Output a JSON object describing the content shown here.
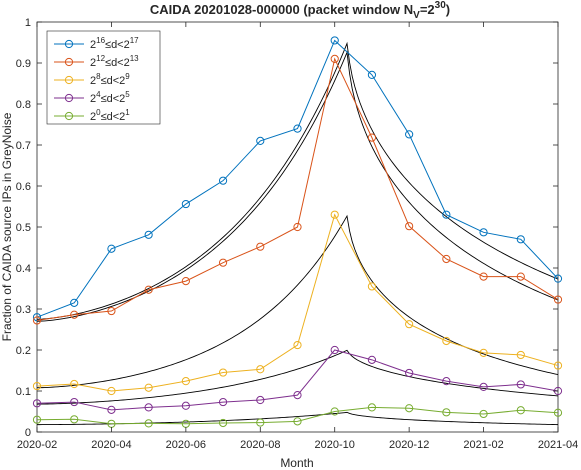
{
  "chart_data": {
    "type": "line",
    "title": "CAIDA 20201028-000000 (packet window N",
    "title_sub": "V",
    "title_eq": "=2",
    "title_sup": "30",
    "title_close": ")",
    "xlabel": "Month",
    "ylabel": "Fraction of CAIDA source IPs in GreyNoise",
    "x_range": [
      "2020-02",
      "2021-04"
    ],
    "ylim": [
      0,
      1
    ],
    "x_ticks": [
      "2020-02",
      "2020-04",
      "2020-06",
      "2020-08",
      "2020-10",
      "2020-12",
      "2021-02",
      "2021-04"
    ],
    "x_tick_labels": [
      "2020-02",
      "2020-04",
      "2020-06",
      "2020-08",
      "2020-10",
      "2020-12",
      "2021-02",
      "2021-04"
    ],
    "y_ticks": [
      0,
      0.1,
      0.2,
      0.3,
      0.4,
      0.5,
      0.6,
      0.7,
      0.8,
      0.9,
      1
    ],
    "y_tick_labels": [
      "0",
      "0.1",
      "0.2",
      "0.3",
      "0.4",
      "0.5",
      "0.6",
      "0.7",
      "0.8",
      "0.9",
      "1"
    ],
    "grid": false,
    "legend_position": "top-left",
    "months": [
      "2020-02",
      "2020-03",
      "2020-04",
      "2020-05",
      "2020-06",
      "2020-07",
      "2020-08",
      "2020-09",
      "2020-10",
      "2020-11",
      "2020-12",
      "2021-01",
      "2021-02",
      "2021-03",
      "2021-04"
    ],
    "series": [
      {
        "legend": {
          "a": "2",
          "a_sup": "16",
          "op": "≤d<2",
          "b_sup": "17"
        },
        "color": "#0072BD",
        "values": [
          0.28,
          0.315,
          0.447,
          0.481,
          0.556,
          0.613,
          0.71,
          0.74,
          0.955,
          0.871,
          0.726,
          0.53,
          0.487,
          0.47,
          0.374
        ],
        "fit": {
          "peak_x": "2020-10",
          "peak_value": 0.952,
          "start_value": 0.275,
          "end_value": 0.373
        }
      },
      {
        "legend": {
          "a": "2",
          "a_sup": "12",
          "op": "≤d<2",
          "b_sup": "13"
        },
        "color": "#D95319",
        "values": [
          0.272,
          0.286,
          0.295,
          0.347,
          0.368,
          0.413,
          0.452,
          0.5,
          0.91,
          0.718,
          0.502,
          0.422,
          0.379,
          0.379,
          0.323
        ],
        "fit": {
          "peak_x": "2020-10",
          "peak_value": 0.93,
          "start_value": 0.27,
          "end_value": 0.322
        }
      },
      {
        "legend": {
          "a": "2",
          "a_sup": "8",
          "op": "≤d<2",
          "b_sup": "9"
        },
        "color": "#EDB120",
        "values": [
          0.112,
          0.117,
          0.1,
          0.108,
          0.124,
          0.145,
          0.153,
          0.212,
          0.53,
          0.355,
          0.263,
          0.222,
          0.193,
          0.188,
          0.162
        ],
        "fit": {
          "peak_x": "2020-10",
          "peak_value": 0.53,
          "start_value": 0.108,
          "end_value": 0.14
        }
      },
      {
        "legend": {
          "a": "2",
          "a_sup": "4",
          "op": "≤d<2",
          "b_sup": "5"
        },
        "color": "#7E2F8E",
        "values": [
          0.07,
          0.073,
          0.054,
          0.06,
          0.064,
          0.073,
          0.078,
          0.09,
          0.2,
          0.176,
          0.144,
          0.124,
          0.11,
          0.116,
          0.1
        ],
        "fit": {
          "peak_x": "2020-10",
          "peak_value": 0.2,
          "start_value": 0.068,
          "end_value": 0.088
        }
      },
      {
        "legend": {
          "a": "2",
          "a_sup": "0",
          "op": "≤d<2",
          "b_sup": "1"
        },
        "color": "#77AC30",
        "values": [
          0.03,
          0.031,
          0.02,
          0.021,
          0.02,
          0.022,
          0.023,
          0.026,
          0.05,
          0.06,
          0.058,
          0.048,
          0.044,
          0.053,
          0.047
        ],
        "fit": {
          "peak_x": "2020-10",
          "peak_value": 0.048,
          "start_value": 0.018,
          "end_value": 0.018
        }
      }
    ],
    "fit_color": "#000000"
  }
}
